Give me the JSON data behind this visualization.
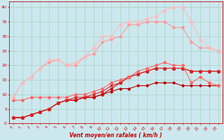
{
  "xlabel": "Vent moyen/en rafales ( km/h )",
  "xlim": [
    -0.5,
    23.5
  ],
  "ylim": [
    0,
    42
  ],
  "xticks": [
    0,
    1,
    2,
    3,
    4,
    5,
    6,
    7,
    8,
    9,
    10,
    11,
    12,
    13,
    14,
    15,
    16,
    17,
    18,
    19,
    20,
    21,
    22,
    23
  ],
  "yticks": [
    0,
    5,
    10,
    15,
    20,
    25,
    30,
    35,
    40
  ],
  "background_color": "#cce8ee",
  "grid_color": "#99ccbb",
  "series": [
    {
      "x": [
        0,
        1,
        2,
        3,
        4,
        5,
        6,
        7,
        8,
        9,
        10,
        11,
        12,
        13,
        14,
        15,
        16,
        17,
        18,
        19,
        20,
        21,
        22,
        23
      ],
      "y": [
        2,
        2,
        3,
        4,
        5,
        7,
        8,
        8,
        9,
        9,
        10,
        11,
        12,
        12,
        13,
        13,
        14,
        14,
        14,
        13,
        13,
        13,
        13,
        13
      ],
      "color": "#bb0000",
      "marker": "P",
      "linewidth": 0.8,
      "markersize": 2.2
    },
    {
      "x": [
        0,
        1,
        2,
        3,
        4,
        5,
        6,
        7,
        8,
        9,
        10,
        11,
        12,
        13,
        14,
        15,
        16,
        17,
        18,
        19,
        20,
        21,
        22,
        23
      ],
      "y": [
        2,
        2,
        3,
        4,
        5,
        7,
        8,
        8,
        9,
        9,
        10,
        12,
        14,
        16,
        17,
        18,
        19,
        19,
        19,
        19,
        18,
        18,
        18,
        18
      ],
      "color": "#cc0000",
      "marker": "D",
      "linewidth": 0.8,
      "markersize": 2.0
    },
    {
      "x": [
        0,
        1,
        2,
        3,
        4,
        5,
        6,
        7,
        8,
        9,
        10,
        11,
        12,
        13,
        14,
        15,
        16,
        17,
        18,
        19,
        20,
        21,
        22,
        23
      ],
      "y": [
        2,
        2,
        3,
        4,
        5,
        7,
        8,
        9,
        9,
        10,
        11,
        13,
        14,
        16,
        17,
        18,
        19,
        19,
        19,
        19,
        18,
        18,
        18,
        18
      ],
      "color": "#dd2222",
      "marker": "x",
      "linewidth": 0.8,
      "markersize": 2.5
    },
    {
      "x": [
        0,
        1,
        2,
        3,
        4,
        5,
        6,
        7,
        8,
        9,
        10,
        11,
        12,
        13,
        14,
        15,
        16,
        17,
        18,
        19,
        20,
        21,
        22,
        23
      ],
      "y": [
        8,
        8,
        9,
        9,
        9,
        9,
        9,
        10,
        10,
        11,
        12,
        14,
        15,
        16,
        18,
        19,
        20,
        21,
        20,
        20,
        14,
        16,
        14,
        13
      ],
      "color": "#ff6666",
      "marker": "D",
      "linewidth": 0.8,
      "markersize": 2.0
    },
    {
      "x": [
        0,
        1,
        2,
        3,
        4,
        5,
        6,
        7,
        8,
        9,
        10,
        11,
        12,
        13,
        14,
        15,
        16,
        17,
        18,
        19,
        20,
        21,
        22,
        23
      ],
      "y": [
        9,
        14,
        16,
        19,
        21,
        22,
        20,
        20,
        23,
        24,
        28,
        29,
        30,
        34,
        34,
        35,
        35,
        35,
        33,
        33,
        28,
        26,
        26,
        25
      ],
      "color": "#ff9999",
      "marker": "D",
      "linewidth": 0.8,
      "markersize": 2.0
    },
    {
      "x": [
        0,
        1,
        2,
        3,
        4,
        5,
        6,
        7,
        8,
        9,
        10,
        11,
        12,
        13,
        14,
        15,
        16,
        17,
        18,
        19,
        20,
        21,
        22,
        23
      ],
      "y": [
        9,
        14,
        16,
        19,
        22,
        22,
        20,
        21,
        23,
        26,
        30,
        30,
        34,
        35,
        35,
        36,
        37,
        39,
        40,
        40,
        35,
        29,
        26,
        25
      ],
      "color": "#ffbbbb",
      "marker": "^",
      "linewidth": 0.8,
      "markersize": 3.0
    }
  ]
}
